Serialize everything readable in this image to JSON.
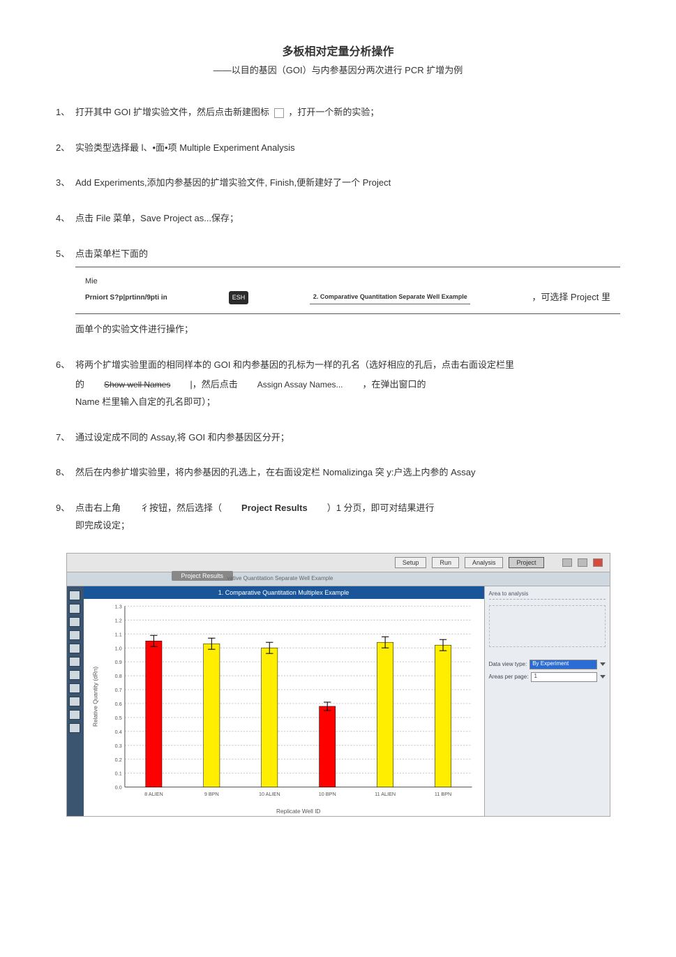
{
  "title": "多板相对定量分析操作",
  "subtitle": "——以目的基因（GOI）与内参基因分两次进行 PCR 扩增为例",
  "steps": {
    "s1": {
      "num": "1、",
      "a": "打开其中 GOI 扩增实验文件，然后点击新建图标",
      "b": "，打开一个新的实验；"
    },
    "s2": {
      "num": "2、",
      "text": "实验类型选择最 l、•面•项 Multiple Experiment Analysis"
    },
    "s3": {
      "num": "3、",
      "text": "Add Experiments,添加内参基因的扩增实验文件, Finish,便新建好了一个 Project"
    },
    "s4": {
      "num": "4、",
      "text": "点击 File 菜单，Save Project as...保存；"
    },
    "s5": {
      "num": "5、",
      "lead": "点击菜单栏下面的",
      "mie": "Mie",
      "left": "Prniort S?p|prtinn/9pti in",
      "mid": "ESH",
      "underline": "2. Comparative Quantitation Separate Well Example",
      "right": "，可选择 Project 里",
      "tail": "面单个的实验文件进行操作；"
    },
    "s6": {
      "num": "6、",
      "line1": "将两个扩增实验里面的相同样本的 GOI 和内参基因的孔标为一样的孔名（选好相应的孔后，点击右面设定栏里",
      "label_a": "的",
      "btn1": "Show well Names",
      "mid": "|，然后点击",
      "btn2": "Assign Assay Names...",
      "right": "，在弹出窗口的",
      "line3": "Name 栏里输入自定的孔名即可）；"
    },
    "s7": {
      "num": "7、",
      "text": "通过设定成不同的 Assay,将 GOI 和内参基因区分开；"
    },
    "s8": {
      "num": "8、",
      "text": "然后在内参扩增实验里，将内参基因的孔选上，在右面设定栏 Nomalizinga 突 y:户选上内参的 Assay"
    },
    "s9": {
      "num": "9、",
      "a": "点击右上角",
      "b": "彳按钮，然后选择（",
      "c": "Project Results",
      "d": "）1 分页，即可对结果进行",
      "e": "即完成设定；"
    }
  },
  "screenshot": {
    "top_tabs": [
      "Setup",
      "Run",
      "Analysis",
      "Project"
    ],
    "active_tab": "Project",
    "sub_bar_text": "vative Quantitation Separate Well Example",
    "proj_results_label": "Project Results",
    "chart_title": "1. Comparative Quantitation Multiplex Example",
    "right_pane": {
      "section": "Area to analysis",
      "row1_label": "Data view type:",
      "row1_value": "By Experiment",
      "row2_label": "Areas per page:",
      "row2_value": "1"
    },
    "chart": {
      "categories": [
        "8 ALIEN",
        "9 BPN",
        "10 ALIEN",
        "10 BPN",
        "11 ALIEN",
        "11 BPN"
      ],
      "values": [
        1.05,
        1.03,
        1.0,
        0.58,
        1.04,
        1.02
      ],
      "errors": [
        0.04,
        0.04,
        0.04,
        0.03,
        0.04,
        0.04
      ],
      "colors": [
        "#ff0000",
        "#ffee00",
        "#ffee00",
        "#ff0000",
        "#ffee00",
        "#ffee00"
      ],
      "ylabel": "Relative Quantity (dRn)",
      "xlabel": "Replicate Well ID",
      "ylim": [
        0,
        1.3
      ],
      "yticks": [
        0.0,
        0.1,
        0.2,
        0.3,
        0.4,
        0.5,
        0.6,
        0.7,
        0.8,
        0.9,
        1.0,
        1.1,
        1.2,
        1.3
      ],
      "grid_color": "#c6c6c6",
      "bar_width": 0.1
    }
  }
}
